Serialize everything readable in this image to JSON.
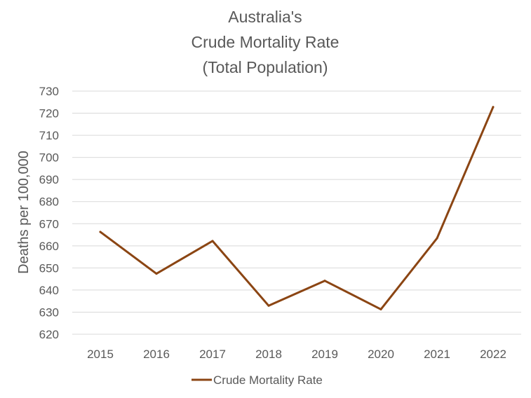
{
  "chart_data": {
    "type": "line",
    "title_lines": [
      "Australia's",
      "Crude Mortality Rate",
      "(Total Population)"
    ],
    "xlabel": "",
    "ylabel": "Deaths per 100,000",
    "categories": [
      "2015",
      "2016",
      "2017",
      "2018",
      "2019",
      "2020",
      "2021",
      "2022"
    ],
    "series": [
      {
        "name": "Crude Mortality Rate",
        "values": [
          666.3,
          647.4,
          662.2,
          632.9,
          644.2,
          631.3,
          663.4,
          722.8
        ],
        "color": "#8B4513"
      }
    ],
    "ylim": [
      620,
      730
    ],
    "yticks": [
      620,
      630,
      640,
      650,
      660,
      670,
      680,
      690,
      700,
      710,
      720,
      730
    ],
    "grid": true,
    "legend_position": "bottom"
  }
}
